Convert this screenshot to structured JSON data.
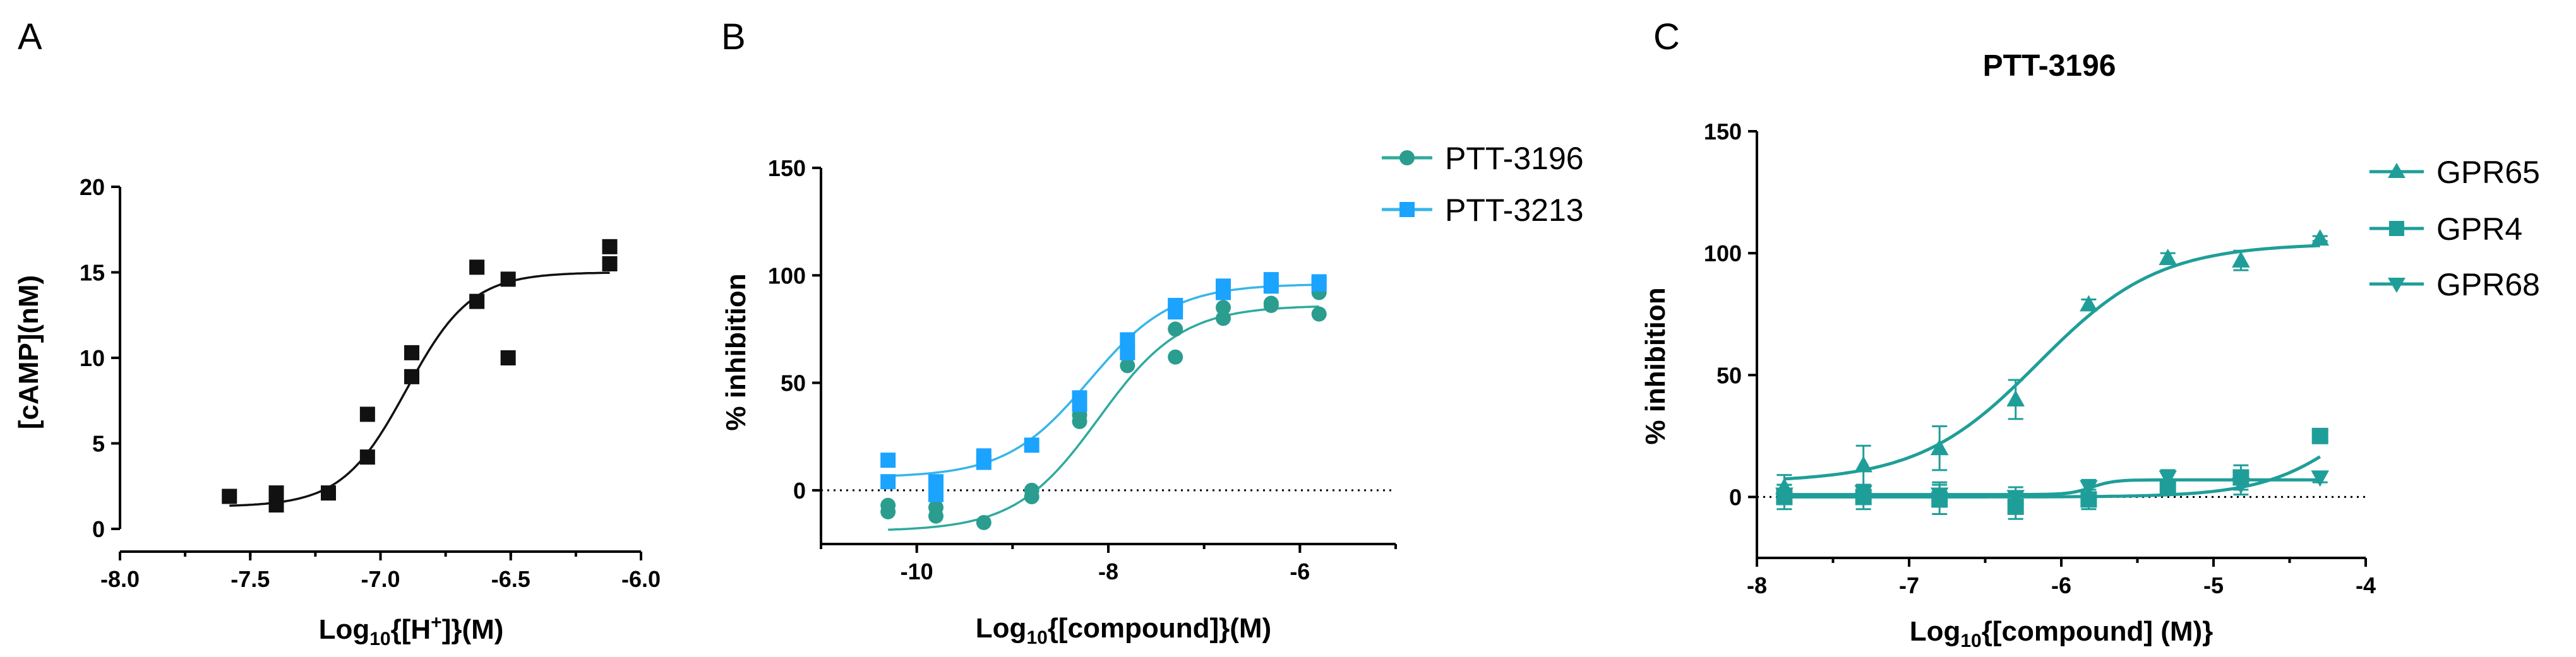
{
  "colors": {
    "black": "#111111",
    "teal_dark": "#2a9d8f",
    "blue_light": "#1aa3ff",
    "teal": "#1f9e99",
    "curve_teal": "#2faa9f",
    "curve_blue": "#37b6e8"
  },
  "chart_data": [
    {
      "panel": "A",
      "type": "scatter",
      "title": "",
      "xlabel_main": "Log",
      "xlabel_sub": "10",
      "xlabel_tail": "{[H",
      "xlabel_sup": "+",
      "xlabel_end": "]}(M)",
      "ylabel": "[cAMP](nM)",
      "xlim": [
        -8.0,
        -6.0
      ],
      "ylim": [
        0,
        20
      ],
      "xticks": [
        -8.0,
        -7.5,
        -7.0,
        -6.5,
        -6.0
      ],
      "xtick_labels": [
        "-8.0",
        "-7.5",
        "-7.0",
        "-6.5",
        "-6.0"
      ],
      "yticks": [
        0,
        5,
        10,
        15,
        20
      ],
      "ytick_labels": [
        "0",
        "5",
        "10",
        "15",
        "20"
      ],
      "series": [
        {
          "name": "cAMP",
          "marker": "square",
          "color": "#111111",
          "x": [
            -7.58,
            -7.4,
            -7.4,
            -7.2,
            -7.05,
            -7.05,
            -6.88,
            -6.88,
            -6.63,
            -6.63,
            -6.51,
            -6.51,
            -6.12,
            -6.12
          ],
          "y": [
            1.9,
            1.4,
            2.1,
            2.1,
            4.2,
            6.7,
            8.9,
            10.3,
            13.3,
            15.3,
            14.6,
            10.0,
            15.5,
            16.5
          ],
          "fit": {
            "bottom": 1.3,
            "top": 15.0,
            "logEC50": -6.9,
            "hill": 3.5,
            "from": -7.58,
            "to": -6.12
          }
        }
      ]
    },
    {
      "panel": "B",
      "type": "scatter",
      "title": "",
      "xlabel_main": "Log",
      "xlabel_sub": "10",
      "xlabel_tail": "{[compound]}(M)",
      "ylabel": "% inhibition",
      "xlim": [
        -11.0,
        -5.0
      ],
      "ylim": [
        -25,
        150
      ],
      "xticks": [
        -10,
        -8,
        -6
      ],
      "xtick_labels": [
        "-10",
        "-8",
        "-6"
      ],
      "yticks": [
        0,
        50,
        100,
        150
      ],
      "ytick_labels": [
        "0",
        "50",
        "100",
        "150"
      ],
      "zero_line": true,
      "legend": [
        "PTT-3196",
        "PTT-3213"
      ],
      "series": [
        {
          "name": "PTT-3196",
          "marker": "circle",
          "color": "#2a9d8f",
          "x": [
            -10.3,
            -10.3,
            -9.8,
            -9.8,
            -9.3,
            -8.8,
            -8.8,
            -8.3,
            -8.3,
            -7.8,
            -7.8,
            -7.3,
            -7.3,
            -6.8,
            -6.8,
            -6.3,
            -6.3,
            -5.8,
            -5.8
          ],
          "y": [
            -7,
            -10,
            -12,
            -8,
            -15,
            -3,
            0,
            32,
            35,
            58,
            63,
            62,
            75,
            80,
            85,
            87,
            86,
            82,
            92
          ],
          "fit": {
            "bottom": -19,
            "top": 86,
            "logEC50": -8.1,
            "hill": 1.0,
            "from": -10.3,
            "to": -5.8
          }
        },
        {
          "name": "PTT-3213",
          "marker": "square",
          "color": "#1aa3ff",
          "x": [
            -10.3,
            -10.3,
            -9.8,
            -9.8,
            -9.3,
            -9.3,
            -8.8,
            -8.3,
            -8.3,
            -7.8,
            -7.8,
            -7.3,
            -7.3,
            -6.8,
            -6.8,
            -6.3,
            -6.3,
            -5.8,
            -5.8
          ],
          "y": [
            14,
            4,
            4,
            -2,
            16,
            13,
            21,
            43,
            40,
            70,
            64,
            86,
            83,
            95,
            92,
            98,
            95,
            97,
            96
          ],
          "fit": {
            "bottom": 6,
            "top": 96,
            "logEC50": -8.2,
            "hill": 1.0,
            "from": -10.3,
            "to": -5.8
          }
        }
      ]
    },
    {
      "panel": "C",
      "type": "scatter",
      "title": "PTT-3196",
      "xlabel_main": "Log",
      "xlabel_sub": "10",
      "xlabel_tail": "{[compound] (M)}",
      "ylabel": "% inhibition",
      "xlim": [
        -8,
        -4
      ],
      "ylim": [
        -25,
        150
      ],
      "xticks": [
        -8,
        -7,
        -6,
        -5,
        -4
      ],
      "xtick_labels": [
        "-8",
        "-7",
        "-6",
        "-5",
        "-4"
      ],
      "yticks": [
        0,
        50,
        100,
        150
      ],
      "ytick_labels": [
        "0",
        "50",
        "100",
        "150"
      ],
      "zero_line": true,
      "legend": [
        "GPR65",
        "GPR4",
        "GPR68"
      ],
      "series": [
        {
          "name": "GPR65",
          "marker": "triangle-up",
          "color": "#1f9e99",
          "x": [
            -7.82,
            -7.3,
            -6.8,
            -6.3,
            -5.82,
            -5.3,
            -4.82,
            -4.3
          ],
          "y": [
            4,
            13,
            20,
            40,
            79,
            98,
            97,
            106
          ],
          "err": [
            5,
            8,
            9,
            8,
            2,
            2,
            4,
            1
          ],
          "fit": {
            "bottom": 6,
            "top": 104,
            "logEC50": -6.15,
            "hill": 1.1,
            "from": -7.82,
            "to": -4.3
          }
        },
        {
          "name": "GPR4",
          "marker": "square",
          "color": "#1f9e99",
          "x": [
            -7.82,
            -7.3,
            -6.8,
            -6.3,
            -5.82,
            -5.3,
            -4.82,
            -4.3
          ],
          "y": [
            0,
            0,
            -1,
            -4,
            -1,
            4,
            8,
            25
          ],
          "err": [
            5,
            5,
            6,
            5,
            4,
            3,
            5,
            2
          ],
          "fit": {
            "bottom": 0,
            "top": 60,
            "logEC50": -4.0,
            "hill": 1.4,
            "from": -7.82,
            "to": -4.3
          }
        },
        {
          "name": "GPR68",
          "marker": "triangle-down",
          "color": "#1f9e99",
          "x": [
            -7.82,
            -7.3,
            -6.8,
            -6.3,
            -5.82,
            -5.3,
            -4.82,
            -4.3
          ],
          "y": [
            1,
            2,
            1,
            0,
            4,
            8,
            5,
            8
          ],
          "err": [
            4,
            3,
            5,
            4,
            3,
            3,
            4,
            2
          ],
          "fit": {
            "bottom": 1,
            "top": 7,
            "logEC50": -5.8,
            "hill": 6.0,
            "from": -7.82,
            "to": -4.3
          }
        }
      ]
    }
  ]
}
